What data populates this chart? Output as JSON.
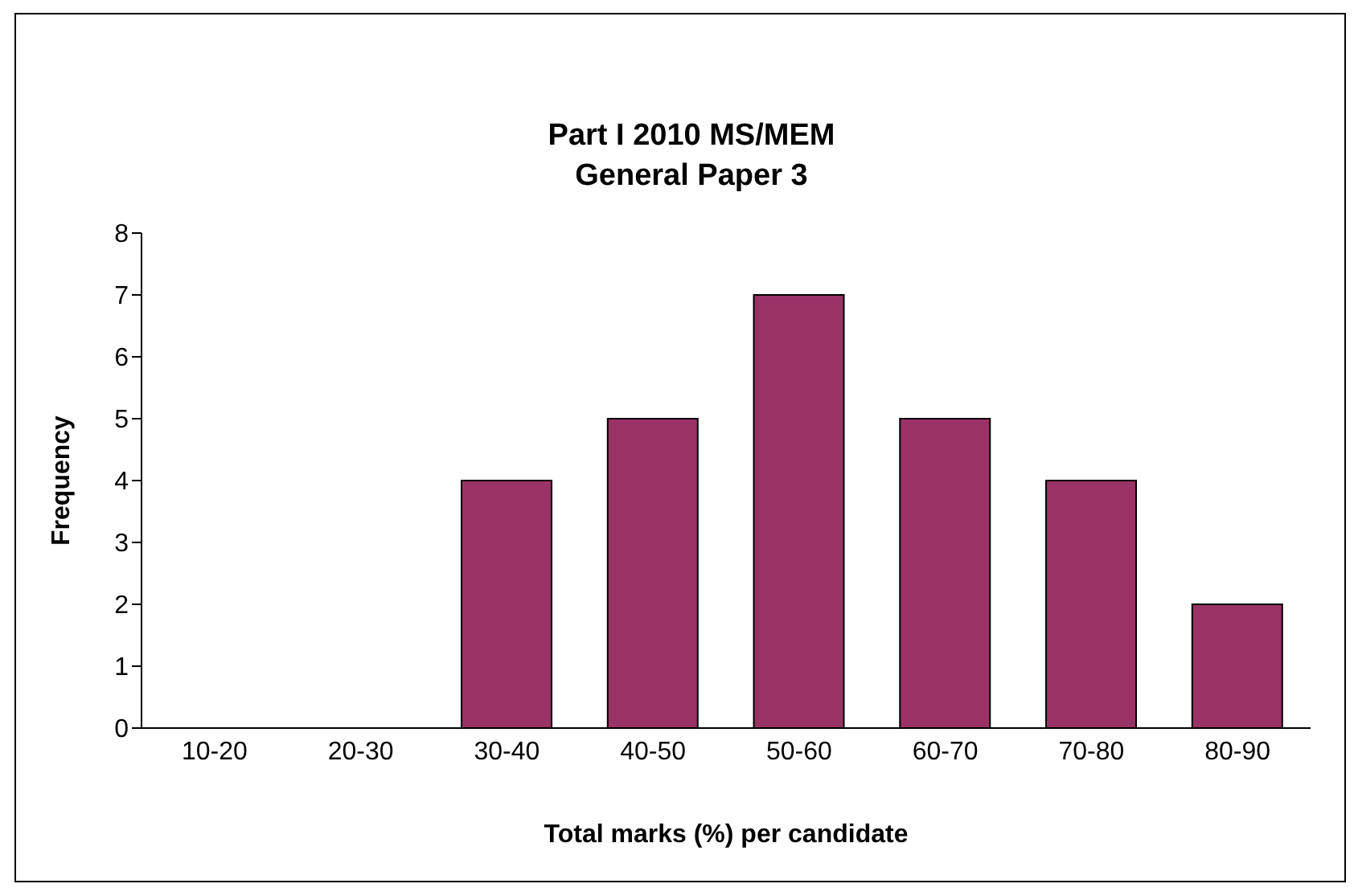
{
  "chart_data": {
    "type": "bar",
    "title": "Part I 2010 MS/MEM\nGeneral Paper 3",
    "xlabel": "Total marks (%) per candidate",
    "ylabel": "Frequency",
    "categories": [
      "10-20",
      "20-30",
      "30-40",
      "40-50",
      "50-60",
      "60-70",
      "70-80",
      "80-90"
    ],
    "values": [
      0,
      0,
      4,
      5,
      7,
      5,
      4,
      2
    ],
    "color": "#993366",
    "ylim": [
      0,
      8
    ],
    "yticks": [
      0,
      1,
      2,
      3,
      4,
      5,
      6,
      7,
      8
    ],
    "grid": false,
    "legend": false
  }
}
